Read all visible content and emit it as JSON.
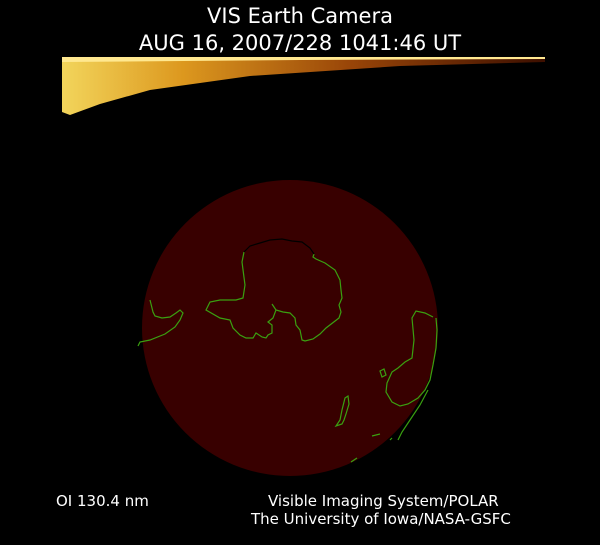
{
  "header": {
    "title": "VIS Earth Camera",
    "timestamp": "AUG 16, 2007/228 1041:46 UT"
  },
  "image": {
    "disk_color": "#380000",
    "coastline_color": "#3aa010",
    "aurora_colors": [
      "#ffe060",
      "#e08a10",
      "#8a3000"
    ]
  },
  "footer": {
    "wavelength": "OI  130.4 nm",
    "credit_line1": "Visible Imaging System/POLAR",
    "credit_line2": "The University of Iowa/NASA-GSFC"
  }
}
